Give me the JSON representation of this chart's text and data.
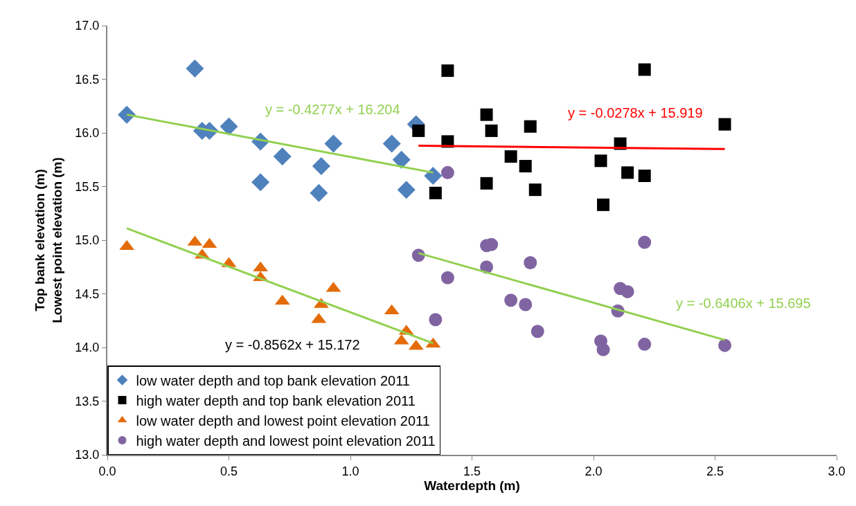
{
  "chart_data": {
    "type": "scatter",
    "xlabel": "Waterdepth (m)",
    "ylabel": "Top bank elevation (m)\nLowest point elevation (m)",
    "xlim": [
      0,
      3
    ],
    "xticks": [
      {
        "value": 0,
        "label": "0.0"
      },
      0.5,
      {
        "value": 1,
        "label": "1.0"
      },
      1.5,
      {
        "value": 2,
        "label": "2.0"
      },
      2.5,
      {
        "value": 3,
        "label": "3.0"
      }
    ],
    "ylim": [
      13,
      17
    ],
    "yticks": [
      {
        "value": 13,
        "label": "13.0"
      },
      13.5,
      {
        "value": 14,
        "label": "14.0"
      },
      14.5,
      {
        "value": 15,
        "label": "15.0"
      },
      15.5,
      {
        "value": 16,
        "label": "16.0"
      },
      16.5,
      {
        "value": 17,
        "label": "17.0"
      }
    ],
    "legend": "bottom left",
    "series": [
      {
        "name": "low water depth and top bank elevation 2011",
        "color": "#4f81bd",
        "marker": "diamond",
        "x": [
          0.08,
          0.36,
          0.39,
          0.42,
          0.5,
          0.63,
          0.63,
          0.72,
          0.88,
          0.87,
          0.93,
          1.17,
          1.21,
          1.23,
          1.34,
          1.27
        ],
        "values": [
          16.17,
          16.6,
          16.02,
          16.02,
          16.06,
          15.92,
          15.54,
          15.78,
          15.69,
          15.44,
          15.9,
          15.9,
          15.75,
          15.47,
          15.6,
          16.08
        ]
      },
      {
        "name": "high water depth and top bank elevation 2011",
        "color": "#000000",
        "marker": "square",
        "x": [
          1.4,
          2.21,
          1.28,
          1.4,
          1.56,
          1.58,
          1.74,
          1.66,
          1.72,
          1.76,
          1.56,
          1.35,
          2.11,
          2.03,
          2.14,
          2.21,
          2.04,
          2.54
        ],
        "values": [
          16.58,
          16.59,
          16.02,
          15.92,
          16.17,
          16.02,
          16.06,
          15.78,
          15.69,
          15.47,
          15.53,
          15.44,
          15.9,
          15.74,
          15.63,
          15.6,
          15.33,
          16.08
        ]
      },
      {
        "name": "low water depth and lowest point elevation 2011",
        "color": "#e36c09",
        "marker": "triangle",
        "x": [
          0.08,
          0.36,
          0.42,
          0.39,
          0.5,
          0.63,
          0.63,
          0.72,
          0.88,
          0.87,
          0.93,
          1.17,
          1.23,
          1.21,
          1.27,
          1.34
        ],
        "values": [
          14.94,
          14.98,
          14.96,
          14.86,
          14.78,
          14.74,
          14.65,
          14.43,
          14.4,
          14.26,
          14.55,
          14.34,
          14.15,
          14.06,
          14.01,
          14.03
        ]
      },
      {
        "name": "high water depth and lowest point elevation 2011",
        "color": "#8064a2",
        "marker": "circle",
        "x": [
          1.28,
          1.4,
          1.35,
          1.56,
          1.58,
          1.56,
          1.74,
          1.66,
          1.72,
          1.77,
          2.21,
          2.11,
          2.14,
          2.1,
          2.03,
          2.04,
          2.21,
          2.54,
          1.4
        ],
        "values": [
          14.86,
          14.65,
          14.26,
          14.95,
          14.96,
          14.75,
          14.79,
          14.44,
          14.4,
          14.15,
          14.98,
          14.55,
          14.52,
          14.34,
          14.06,
          13.98,
          14.03,
          14.02,
          15.63
        ]
      },
      {
        "type": "line",
        "color": "#92d050",
        "marker": "none",
        "x": [
          0.08,
          1.34
        ],
        "values": [
          16.17,
          15.63
        ]
      },
      {
        "type": "line",
        "color": "#ff0000",
        "marker": "none",
        "x": [
          1.28,
          2.54
        ],
        "values": [
          15.88,
          15.85
        ]
      },
      {
        "type": "line",
        "color": "#92d050",
        "marker": "none",
        "x": [
          0.08,
          1.34
        ],
        "values": [
          15.11,
          14.04
        ]
      },
      {
        "type": "line",
        "color": "#92d050",
        "marker": "none",
        "x": [
          1.28,
          2.54
        ],
        "values": [
          14.88,
          14.07
        ]
      }
    ],
    "annotations": [
      "y = -0.4277x + 16.204",
      "y = -0.0278x + 15.919",
      "y = -0.8562x + 15.172",
      "y = -0.6406x + 15.695"
    ]
  }
}
